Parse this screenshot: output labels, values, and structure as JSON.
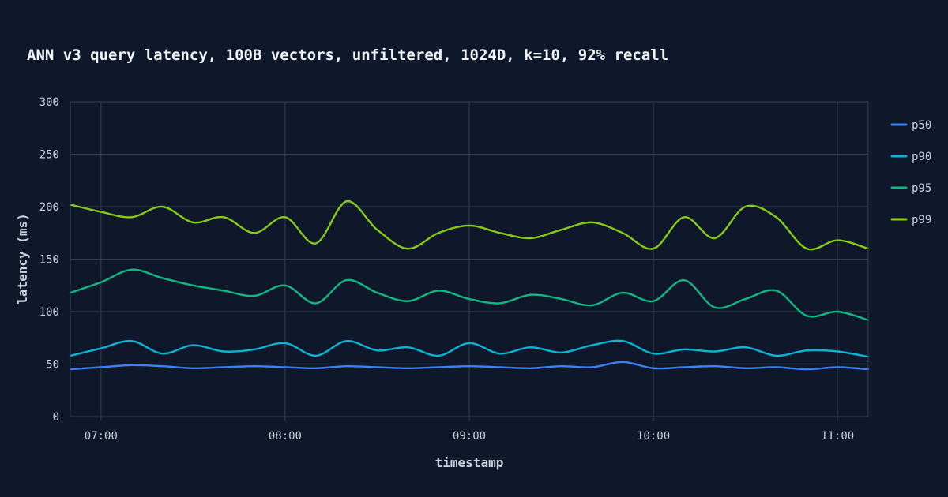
{
  "chart_data": {
    "type": "line",
    "title": "ANN v3 query latency, 100B vectors, unfiltered, 1024D, k=10, 92% recall",
    "xlabel": "timestamp",
    "ylabel": "latency (ms)",
    "ylim": [
      0,
      300
    ],
    "yticks": [
      "0",
      "50",
      "100",
      "150",
      "200",
      "250",
      "300"
    ],
    "xlim": [
      "06:50",
      "11:10"
    ],
    "xticks": [
      {
        "t": "07:00",
        "label": "07:00"
      },
      {
        "t": "08:00",
        "label": "08:00"
      },
      {
        "t": "09:00",
        "label": "09:00"
      },
      {
        "t": "10:00",
        "label": "10:00"
      },
      {
        "t": "11:00",
        "label": "11:00"
      }
    ],
    "grid": true,
    "legend_position": "right",
    "x": [
      "06:50",
      "07:00",
      "07:10",
      "07:20",
      "07:30",
      "07:40",
      "07:50",
      "08:00",
      "08:10",
      "08:20",
      "08:30",
      "08:40",
      "08:50",
      "09:00",
      "09:10",
      "09:20",
      "09:30",
      "09:40",
      "09:50",
      "10:00",
      "10:10",
      "10:20",
      "10:30",
      "10:40",
      "10:50",
      "11:00",
      "11:10"
    ],
    "series": [
      {
        "name": "p50",
        "color": "#3b82f6",
        "values": [
          45,
          47,
          49,
          48,
          46,
          47,
          48,
          47,
          46,
          48,
          47,
          46,
          47,
          48,
          47,
          46,
          48,
          47,
          52,
          46,
          47,
          48,
          46,
          47,
          45,
          47,
          45
        ]
      },
      {
        "name": "p90",
        "color": "#06b6d4",
        "values": [
          58,
          65,
          72,
          60,
          68,
          62,
          64,
          70,
          58,
          72,
          63,
          66,
          58,
          70,
          60,
          66,
          61,
          68,
          72,
          60,
          64,
          62,
          66,
          58,
          63,
          62,
          57
        ]
      },
      {
        "name": "p95",
        "color": "#10b981",
        "values": [
          118,
          128,
          140,
          132,
          125,
          120,
          115,
          125,
          108,
          130,
          118,
          110,
          120,
          112,
          108,
          116,
          112,
          106,
          118,
          110,
          130,
          104,
          112,
          120,
          96,
          100,
          92
        ]
      },
      {
        "name": "p99",
        "color": "#84cc16",
        "values": [
          202,
          195,
          190,
          200,
          185,
          190,
          175,
          190,
          165,
          205,
          178,
          160,
          175,
          182,
          175,
          170,
          178,
          185,
          175,
          160,
          190,
          170,
          200,
          190,
          160,
          168,
          160
        ]
      }
    ]
  }
}
